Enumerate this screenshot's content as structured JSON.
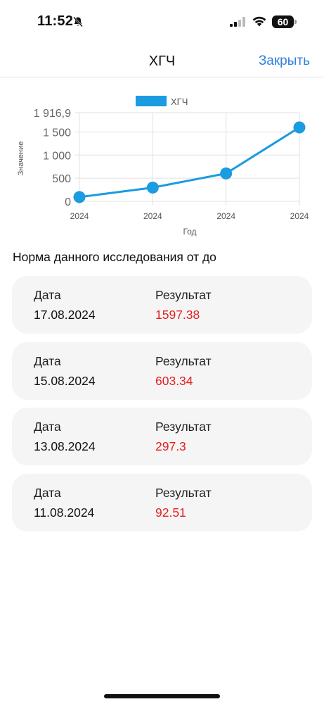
{
  "status_bar": {
    "time": "11:52",
    "battery": "60",
    "icons": [
      "bell-slash-icon",
      "signal-icon",
      "wifi-icon",
      "battery-icon"
    ]
  },
  "nav": {
    "title": "ХГЧ",
    "close_label": "Закрыть"
  },
  "chart_data": {
    "type": "line",
    "legend": "ХГЧ",
    "legend_position": "top-center",
    "color": "#1b9be0",
    "xlabel": "Год",
    "ylabel": "Значение",
    "x": [
      "2024",
      "2024",
      "2024",
      "2024"
    ],
    "values": [
      92.51,
      297.3,
      603.34,
      1597.38
    ],
    "y_ticks": [
      "0",
      "500",
      "1 000",
      "1 500",
      "1 916,9"
    ],
    "y_tick_values": [
      0,
      500,
      1000,
      1500,
      1916.9
    ],
    "ylim": [
      0,
      1916.9
    ],
    "grid": true
  },
  "norm_text": "Норма данного исследования от до",
  "records": [
    {
      "date_label": "Дата",
      "date": "17.08.2024",
      "result_label": "Результат",
      "result": "1597.38"
    },
    {
      "date_label": "Дата",
      "date": "15.08.2024",
      "result_label": "Результат",
      "result": "603.34"
    },
    {
      "date_label": "Дата",
      "date": "13.08.2024",
      "result_label": "Результат",
      "result": "297.3"
    },
    {
      "date_label": "Дата",
      "date": "11.08.2024",
      "result_label": "Результат",
      "result": "92.51"
    }
  ]
}
